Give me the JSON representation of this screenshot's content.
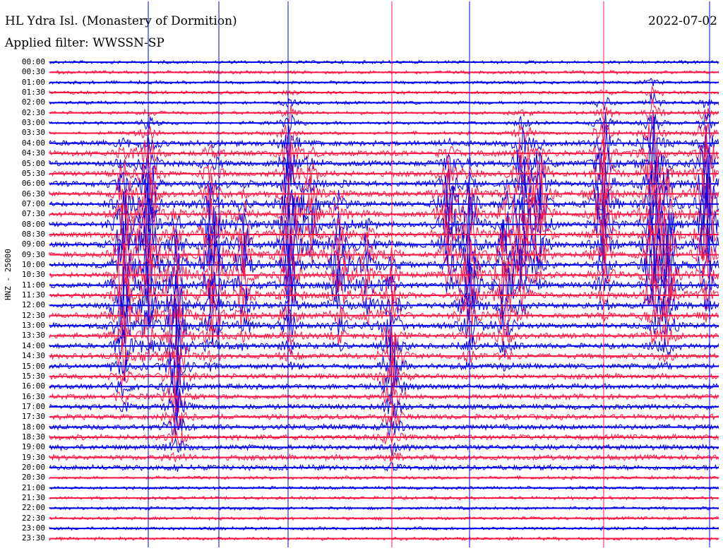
{
  "header": {
    "station": "HL Ydra Isl. (Monastery of Dormition)",
    "filter": "Applied filter: WWSSN-SP",
    "date": "2022-07-02"
  },
  "axis": {
    "ylabel": "HNZ - 25000"
  },
  "colors": {
    "trace_a": "#0000ee",
    "trace_b": "#ff1744",
    "background": "#ffffff"
  },
  "chart_data": {
    "type": "line",
    "hours": [
      "00:00",
      "00:30",
      "01:00",
      "01:30",
      "02:00",
      "02:30",
      "03:00",
      "03:30",
      "04:00",
      "04:30",
      "05:00",
      "05:30",
      "06:00",
      "06:30",
      "07:00",
      "07:30",
      "08:00",
      "08:30",
      "09:00",
      "09:30",
      "10:00",
      "10:30",
      "11:00",
      "11:30",
      "12:00",
      "12:30",
      "13:00",
      "13:30",
      "14:00",
      "14:30",
      "15:00",
      "15:30",
      "16:00",
      "16:30",
      "17:00",
      "17:30",
      "18:00",
      "18:30",
      "19:00",
      "19:30",
      "20:00",
      "20:30",
      "21:00",
      "21:30",
      "22:00",
      "22:30",
      "23:00",
      "23:30"
    ],
    "series": [],
    "note_colors": [
      "blue",
      "red"
    ]
  }
}
